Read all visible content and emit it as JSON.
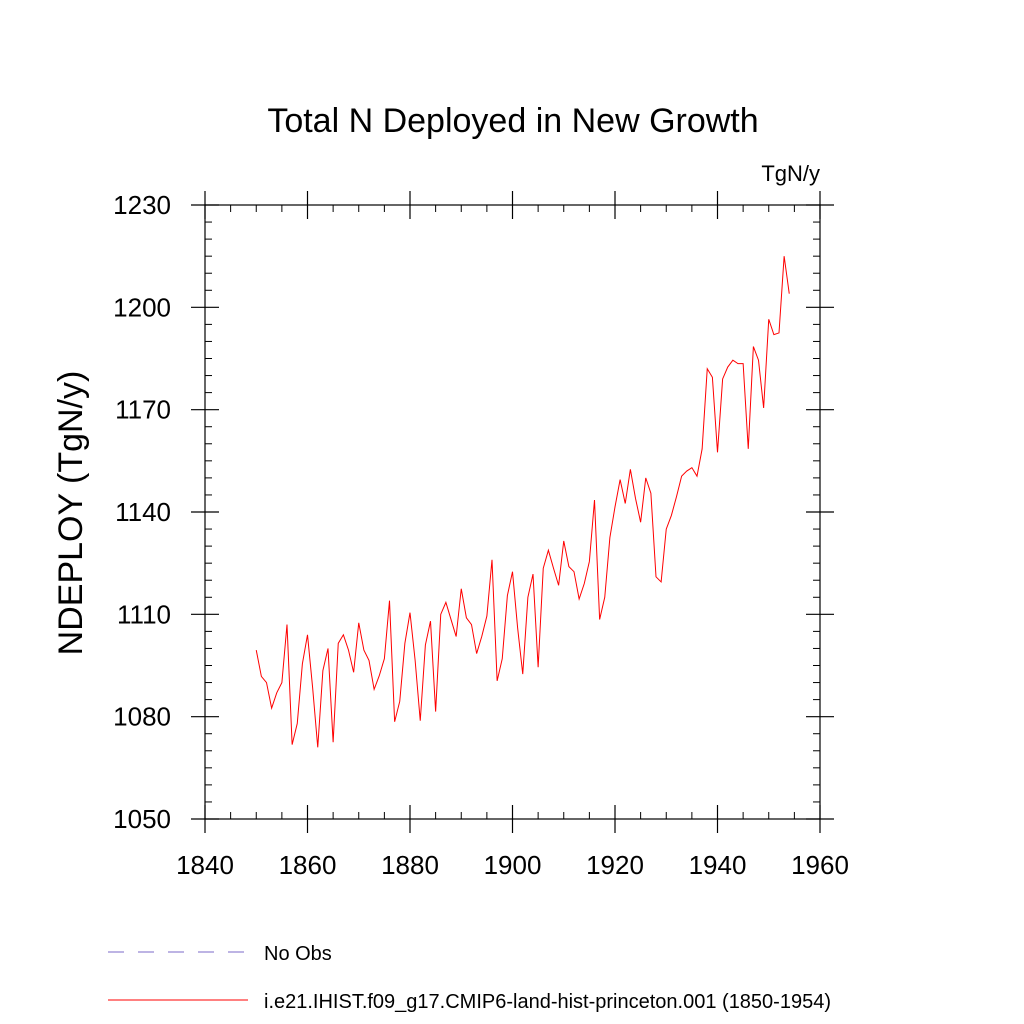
{
  "chart_data": {
    "type": "line",
    "title": "Total N Deployed in New Growth",
    "units": "TgN/y",
    "ylabel": "NDEPLOY  (TgN/y)",
    "xlabel": "",
    "xlim": [
      1840,
      1960
    ],
    "ylim": [
      1050,
      1230
    ],
    "x_ticks": [
      1840,
      1860,
      1880,
      1900,
      1920,
      1940,
      1960
    ],
    "y_ticks": [
      1050,
      1080,
      1110,
      1140,
      1170,
      1200,
      1230
    ],
    "x_minor_step": 5,
    "y_minor_step": 5,
    "grid": false,
    "legend_position": "bottom",
    "series": [
      {
        "name": "No Obs",
        "color": "#7b68c8",
        "dash": "dashed",
        "x": [],
        "y": []
      },
      {
        "name": "i.e21.IHIST.f09_g17.CMIP6-land-hist-princeton.001 (1850-1954)",
        "color": "#ff0000",
        "dash": "solid",
        "x": [
          1850,
          1851,
          1852,
          1853,
          1854,
          1855,
          1856,
          1857,
          1858,
          1859,
          1860,
          1861,
          1862,
          1863,
          1864,
          1865,
          1866,
          1867,
          1868,
          1869,
          1870,
          1871,
          1872,
          1873,
          1874,
          1875,
          1876,
          1877,
          1878,
          1879,
          1880,
          1881,
          1882,
          1883,
          1884,
          1885,
          1886,
          1887,
          1888,
          1889,
          1890,
          1891,
          1892,
          1893,
          1894,
          1895,
          1896,
          1897,
          1898,
          1899,
          1900,
          1901,
          1902,
          1903,
          1904,
          1905,
          1906,
          1907,
          1908,
          1909,
          1910,
          1911,
          1912,
          1913,
          1914,
          1915,
          1916,
          1917,
          1918,
          1919,
          1920,
          1921,
          1922,
          1923,
          1924,
          1925,
          1926,
          1927,
          1928,
          1929,
          1930,
          1931,
          1932,
          1933,
          1934,
          1935,
          1936,
          1937,
          1938,
          1939,
          1940,
          1941,
          1942,
          1943,
          1944,
          1945,
          1946,
          1947,
          1948,
          1949,
          1950,
          1951,
          1952,
          1953,
          1954
        ],
        "y": [
          1099.5,
          1091.8,
          1090.0,
          1082.5,
          1087.0,
          1090.0,
          1107.0,
          1071.8,
          1078.0,
          1095.5,
          1104.0,
          1088.5,
          1071.0,
          1093.5,
          1100.0,
          1072.5,
          1101.5,
          1104.0,
          1099.5,
          1093.0,
          1107.5,
          1099.5,
          1096.5,
          1088.0,
          1092.0,
          1097.0,
          1114.0,
          1078.5,
          1084.5,
          1101.5,
          1110.5,
          1096.5,
          1078.8,
          1101.0,
          1108.0,
          1081.5,
          1110.0,
          1113.5,
          1108.5,
          1103.5,
          1117.5,
          1109.0,
          1107.0,
          1098.5,
          1103.5,
          1109.5,
          1126.0,
          1090.5,
          1097.0,
          1115.5,
          1122.5,
          1106.0,
          1092.5,
          1115.0,
          1121.8,
          1094.5,
          1123.5,
          1128.8,
          1123.5,
          1118.5,
          1131.5,
          1124.0,
          1122.5,
          1114.5,
          1119.0,
          1125.5,
          1143.5,
          1108.5,
          1115.0,
          1132.5,
          1141.5,
          1149.5,
          1142.5,
          1152.5,
          1144.0,
          1137.0,
          1150.0,
          1145.5,
          1121.0,
          1119.5,
          1135.0,
          1139.0,
          1144.5,
          1150.5,
          1152.0,
          1153.0,
          1150.5,
          1158.5,
          1182.0,
          1179.5,
          1157.5,
          1179.0,
          1182.5,
          1184.5,
          1183.5,
          1183.5,
          1158.5,
          1188.5,
          1184.5,
          1170.5,
          1196.5,
          1192.0,
          1192.5,
          1215.0,
          1204.0
        ]
      }
    ]
  }
}
